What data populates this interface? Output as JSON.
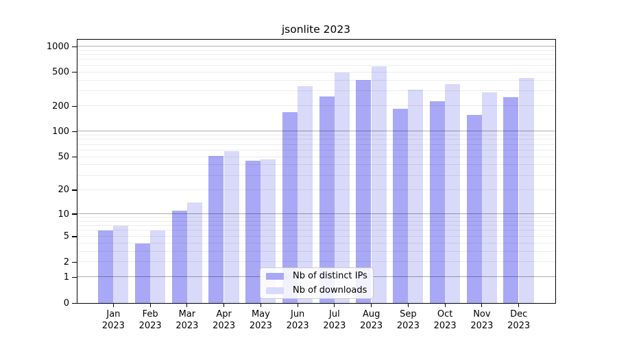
{
  "title": "jsonlite 2023",
  "chart_data": {
    "type": "bar",
    "title": "jsonlite 2023",
    "x_categories": [
      "Jan 2023",
      "Feb 2023",
      "Mar 2023",
      "Apr 2023",
      "May 2023",
      "Jun 2023",
      "Jul 2023",
      "Aug 2023",
      "Sep 2023",
      "Oct 2023",
      "Nov 2023",
      "Dec 2023"
    ],
    "x_tick_months": [
      "Jan",
      "Feb",
      "Mar",
      "Apr",
      "May",
      "Jun",
      "Jul",
      "Aug",
      "Sep",
      "Oct",
      "Nov",
      "Dec"
    ],
    "x_tick_year": "2023",
    "series": [
      {
        "name": "Nb of distinct IPs",
        "color": "#a8a8f6",
        "values": [
          6,
          4,
          11,
          52,
          45,
          170,
          260,
          405,
          186,
          229,
          157,
          253
        ]
      },
      {
        "name": "Nb of downloads",
        "color": "#d9d9f9",
        "values": [
          7,
          6,
          14,
          59,
          47,
          345,
          500,
          583,
          310,
          362,
          289,
          428
        ]
      }
    ],
    "y_axis": {
      "scale": "log10(1+x)",
      "tick_values": [
        1000,
        500,
        200,
        100,
        50,
        20,
        10,
        5,
        2,
        1,
        0
      ],
      "tick_labels": [
        "1000",
        "500",
        "200",
        "100",
        "50",
        "20",
        "10",
        "5",
        "2",
        "1",
        "0"
      ],
      "range": [
        0,
        1200
      ],
      "major_grid_values": [
        1,
        10,
        100,
        1000
      ]
    },
    "legend_position": "lower center",
    "grid": true
  },
  "legend": {
    "items": [
      {
        "label": "Nb of distinct IPs",
        "color": "#a8a8f6"
      },
      {
        "label": "Nb of downloads",
        "color": "#d9d9f9"
      }
    ]
  },
  "colors": {
    "bar_distinct_ips": "#a8a8f6",
    "bar_downloads": "#d9d9f9",
    "axis": "#000000",
    "background": "#ffffff",
    "major_gridline": "#ababab",
    "minor_gridline": "#ebebeb",
    "legend_border": "#cccccc"
  }
}
